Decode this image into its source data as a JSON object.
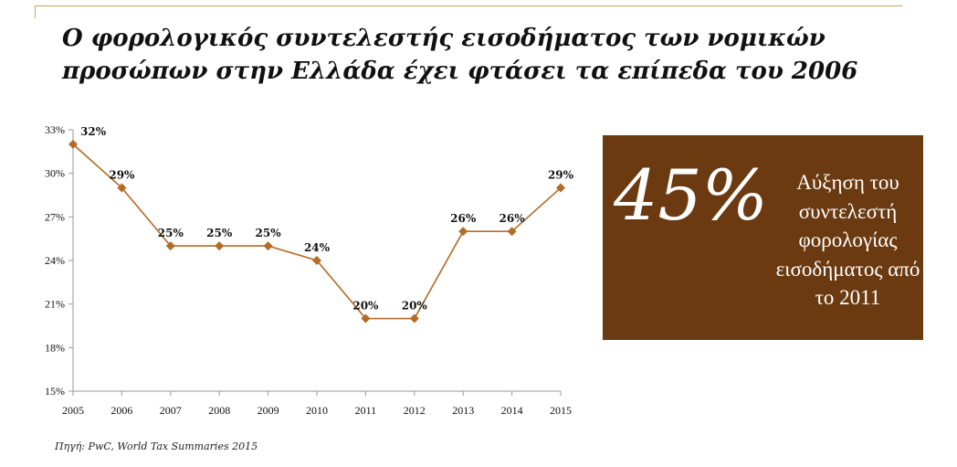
{
  "title_lines": [
    "Ο φορολογικός συντελεστής εισοδήματος των νομικών",
    "προσώπων στην Ελλάδα έχει φτάσει τα επίπεδα του 2006"
  ],
  "highlight": {
    "big_value": "45%",
    "description": "Αύξηση του συντελεστή φορολογίας εισοδήματος από το 2011"
  },
  "source": "Πηγή: PwC, World Tax Summaries 2015",
  "colors": {
    "series": "#b36b26",
    "box": "#6b3a10",
    "rule": "#c9a25a"
  },
  "chart_data": {
    "type": "line",
    "title": "Ο φορολογικός συντελεστής εισοδήματος των νομικών προσώπων στην Ελλάδα έχει φτάσει τα επίπεδα του 2006",
    "categories": [
      "2005",
      "2006",
      "2007",
      "2008",
      "2009",
      "2010",
      "2011",
      "2012",
      "2013",
      "2014",
      "2015"
    ],
    "values": [
      32,
      29,
      25,
      25,
      25,
      24,
      20,
      20,
      26,
      26,
      29
    ],
    "data_labels": [
      "32%",
      "29%",
      "25%",
      "25%",
      "25%",
      "24%",
      "20%",
      "20%",
      "26%",
      "26%",
      "29%"
    ],
    "yticks": [
      "15%",
      "18%",
      "21%",
      "24%",
      "27%",
      "30%",
      "33%"
    ],
    "ytick_values": [
      15,
      18,
      21,
      24,
      27,
      30,
      33
    ],
    "ylim": [
      15,
      33
    ],
    "xlabel": "",
    "ylabel": "",
    "grid": false,
    "marker": "diamond"
  }
}
